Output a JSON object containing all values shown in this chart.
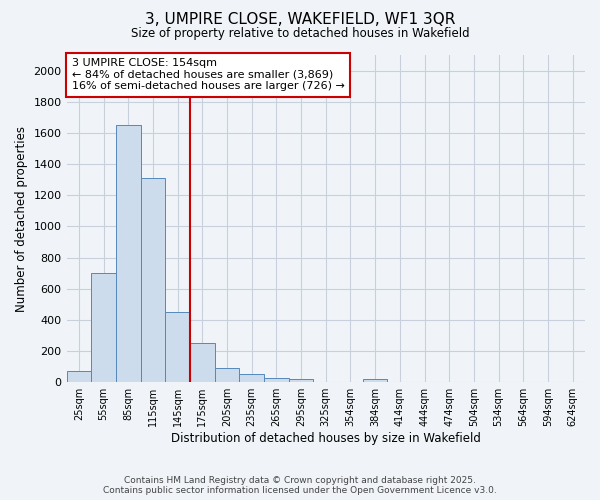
{
  "title": "3, UMPIRE CLOSE, WAKEFIELD, WF1 3QR",
  "subtitle": "Size of property relative to detached houses in Wakefield",
  "xlabel": "Distribution of detached houses by size in Wakefield",
  "ylabel": "Number of detached properties",
  "categories": [
    "25sqm",
    "55sqm",
    "85sqm",
    "115sqm",
    "145sqm",
    "175sqm",
    "205sqm",
    "235sqm",
    "265sqm",
    "295sqm",
    "325sqm",
    "354sqm",
    "384sqm",
    "414sqm",
    "444sqm",
    "474sqm",
    "504sqm",
    "534sqm",
    "564sqm",
    "594sqm",
    "624sqm"
  ],
  "values": [
    70,
    700,
    1650,
    1310,
    450,
    250,
    90,
    50,
    30,
    20,
    0,
    0,
    20,
    0,
    0,
    0,
    0,
    0,
    0,
    0,
    0
  ],
  "bar_color": "#ccdcec",
  "bar_edge_color": "#5588bb",
  "annotation_title": "3 UMPIRE CLOSE: 154sqm",
  "annotation_line1": "← 84% of detached houses are smaller (3,869)",
  "annotation_line2": "16% of semi-detached houses are larger (726) →",
  "annotation_box_color": "#ffffff",
  "annotation_box_edge": "#cc0000",
  "red_line_color": "#cc0000",
  "ylim": [
    0,
    2100
  ],
  "yticks": [
    0,
    200,
    400,
    600,
    800,
    1000,
    1200,
    1400,
    1600,
    1800,
    2000
  ],
  "footer_line1": "Contains HM Land Registry data © Crown copyright and database right 2025.",
  "footer_line2": "Contains public sector information licensed under the Open Government Licence v3.0.",
  "bg_color": "#f0f4f8",
  "grid_color": "#c8d0dc"
}
